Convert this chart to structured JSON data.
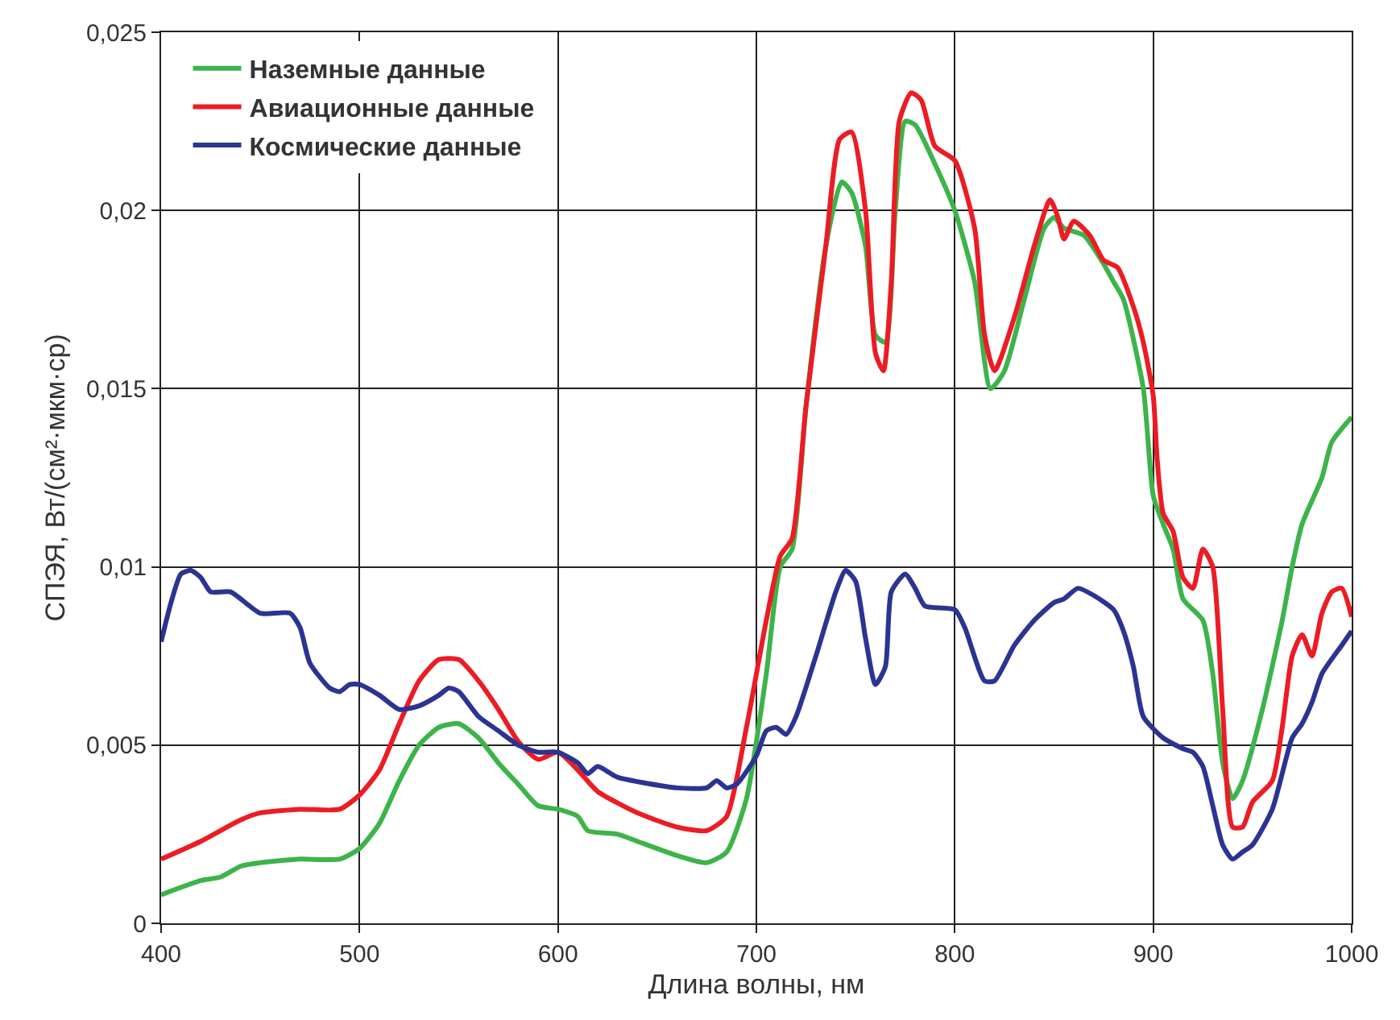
{
  "chart_data": {
    "type": "line",
    "xlabel": "Длина волны, нм",
    "ylabel": "СПЭЯ, Вт/(см²·мкм·ср)",
    "xlim": [
      400,
      1000
    ],
    "xticks": [
      400,
      500,
      600,
      700,
      800,
      900,
      1000
    ],
    "ylim": [
      0,
      0.025
    ],
    "yticks": [
      {
        "value": 0,
        "label": "0"
      },
      {
        "value": 0.005,
        "label": "0,005"
      },
      {
        "value": 0.01,
        "label": "0,01"
      },
      {
        "value": 0.015,
        "label": "0,015"
      },
      {
        "value": 0.02,
        "label": "0,02"
      },
      {
        "value": 0.025,
        "label": "0,025"
      }
    ],
    "grid": true,
    "legend": "top left",
    "marker": "none",
    "line_style": "solid",
    "series": [
      {
        "name": "Наземные данные",
        "color": "#3cb44a",
        "x": [
          400,
          420,
          430,
          440,
          450,
          470,
          490,
          500,
          510,
          520,
          530,
          540,
          550,
          560,
          570,
          580,
          590,
          600,
          610,
          615,
          630,
          640,
          660,
          675,
          685,
          695,
          705,
          712,
          718,
          725,
          735,
          743,
          748,
          755,
          760,
          765,
          770,
          775,
          780,
          790,
          800,
          810,
          818,
          825,
          835,
          845,
          850,
          855,
          865,
          875,
          880,
          885,
          895,
          900,
          905,
          910,
          915,
          925,
          930,
          935,
          940,
          945,
          955,
          965,
          970,
          975,
          985,
          990,
          1000
        ],
        "values": [
          0.0008,
          0.0012,
          0.0013,
          0.0016,
          0.0017,
          0.0018,
          0.0018,
          0.0021,
          0.0028,
          0.004,
          0.005,
          0.0055,
          0.0056,
          0.0052,
          0.0045,
          0.0039,
          0.0033,
          0.0032,
          0.003,
          0.0026,
          0.0025,
          0.0023,
          0.0019,
          0.0017,
          0.002,
          0.0035,
          0.007,
          0.01,
          0.0105,
          0.0145,
          0.019,
          0.0208,
          0.0205,
          0.019,
          0.0165,
          0.0163,
          0.02,
          0.0225,
          0.0224,
          0.0213,
          0.02,
          0.018,
          0.015,
          0.0155,
          0.0175,
          0.0195,
          0.0198,
          0.0195,
          0.0193,
          0.0185,
          0.018,
          0.0175,
          0.015,
          0.012,
          0.0112,
          0.0105,
          0.0091,
          0.0085,
          0.007,
          0.0045,
          0.0035,
          0.004,
          0.006,
          0.0085,
          0.01,
          0.0112,
          0.0125,
          0.0135,
          0.0142
        ]
      },
      {
        "name": "Авиационные данные",
        "color": "#ec1c24",
        "x": [
          400,
          420,
          440,
          450,
          470,
          490,
          500,
          510,
          520,
          530,
          540,
          550,
          560,
          570,
          580,
          590,
          600,
          610,
          620,
          640,
          660,
          675,
          685,
          695,
          705,
          712,
          718,
          725,
          735,
          742,
          748,
          755,
          760,
          764,
          768,
          772,
          778,
          783,
          790,
          800,
          810,
          815,
          820,
          830,
          840,
          848,
          852,
          855,
          860,
          868,
          875,
          882,
          890,
          895,
          900,
          902,
          905,
          910,
          915,
          920,
          925,
          930,
          935,
          940,
          945,
          950,
          960,
          965,
          970,
          975,
          980,
          985,
          990,
          995,
          1000
        ],
        "values": [
          0.0018,
          0.0023,
          0.0029,
          0.0031,
          0.0032,
          0.0032,
          0.0036,
          0.0043,
          0.0056,
          0.0068,
          0.0074,
          0.0074,
          0.0068,
          0.006,
          0.0051,
          0.0046,
          0.0048,
          0.0043,
          0.0037,
          0.0031,
          0.0027,
          0.0026,
          0.003,
          0.0055,
          0.0085,
          0.0103,
          0.0108,
          0.0145,
          0.019,
          0.022,
          0.0222,
          0.02,
          0.016,
          0.0155,
          0.018,
          0.0225,
          0.0233,
          0.0231,
          0.0218,
          0.0214,
          0.0195,
          0.0165,
          0.0155,
          0.017,
          0.019,
          0.0203,
          0.0198,
          0.0192,
          0.0197,
          0.0193,
          0.0186,
          0.0184,
          0.0173,
          0.0163,
          0.0148,
          0.013,
          0.0115,
          0.011,
          0.0097,
          0.0094,
          0.0105,
          0.01,
          0.006,
          0.0027,
          0.0027,
          0.0034,
          0.004,
          0.0055,
          0.0075,
          0.0081,
          0.0075,
          0.0087,
          0.0093,
          0.0094,
          0.0086
        ]
      },
      {
        "name": "Космические данные",
        "color": "#2b3393",
        "x": [
          400,
          405,
          410,
          415,
          420,
          425,
          435,
          450,
          465,
          470,
          475,
          485,
          490,
          495,
          500,
          510,
          520,
          530,
          540,
          545,
          550,
          560,
          570,
          580,
          590,
          600,
          610,
          615,
          620,
          630,
          660,
          675,
          680,
          685,
          690,
          700,
          705,
          710,
          715,
          720,
          730,
          740,
          745,
          750,
          755,
          760,
          765,
          768,
          775,
          780,
          785,
          800,
          805,
          815,
          820,
          830,
          840,
          850,
          855,
          862,
          870,
          880,
          885,
          890,
          895,
          905,
          915,
          920,
          925,
          930,
          935,
          940,
          945,
          950,
          960,
          970,
          975,
          980,
          985,
          995,
          1000
        ],
        "values": [
          0.0079,
          0.009,
          0.0098,
          0.0099,
          0.0097,
          0.0093,
          0.0093,
          0.0087,
          0.0087,
          0.0083,
          0.0073,
          0.0066,
          0.0065,
          0.0067,
          0.0067,
          0.0064,
          0.006,
          0.0061,
          0.0064,
          0.0066,
          0.0065,
          0.0058,
          0.0054,
          0.005,
          0.0048,
          0.0048,
          0.0045,
          0.0042,
          0.0044,
          0.0041,
          0.0038,
          0.0038,
          0.004,
          0.0038,
          0.0039,
          0.0047,
          0.0054,
          0.0055,
          0.0053,
          0.0058,
          0.0075,
          0.0093,
          0.0099,
          0.0096,
          0.008,
          0.0067,
          0.0072,
          0.0093,
          0.0098,
          0.0094,
          0.0089,
          0.0088,
          0.0083,
          0.0068,
          0.0068,
          0.0078,
          0.0085,
          0.009,
          0.0091,
          0.0094,
          0.0092,
          0.0088,
          0.0082,
          0.0072,
          0.0058,
          0.0052,
          0.0049,
          0.0048,
          0.0044,
          0.0033,
          0.0022,
          0.0018,
          0.002,
          0.0022,
          0.0032,
          0.0052,
          0.0056,
          0.0062,
          0.007,
          0.0078,
          0.0082
        ]
      }
    ]
  }
}
